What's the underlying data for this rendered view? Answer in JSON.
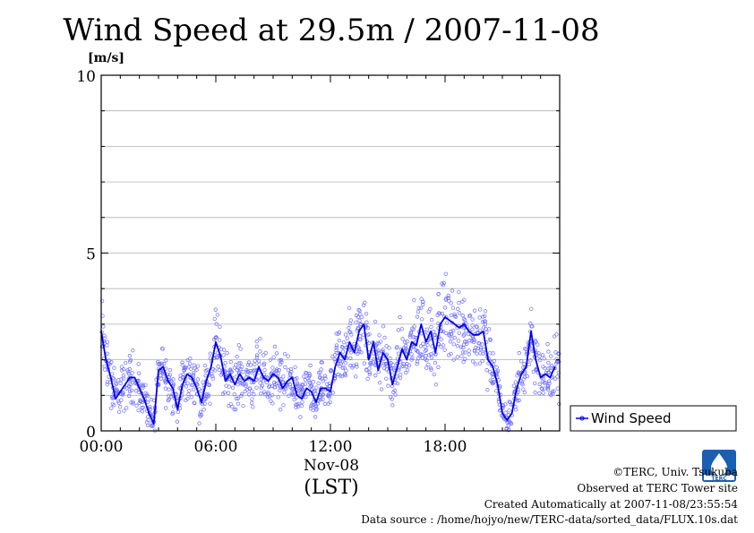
{
  "chart_data": {
    "type": "scatter",
    "title": "Wind Speed at 29.5m / 2007-11-08",
    "ylabel": "[m/s]",
    "ylim": [
      0,
      10
    ],
    "xlim": [
      0,
      24
    ],
    "x_ticks": [
      {
        "value": 0,
        "label": "00:00"
      },
      {
        "value": 6,
        "label": "06:00"
      },
      {
        "value": 12,
        "label": "12:00"
      },
      {
        "value": 18,
        "label": "18:00"
      }
    ],
    "y_ticks": [
      {
        "value": 0,
        "label": "0"
      },
      {
        "value": 5,
        "label": "5"
      },
      {
        "value": 10,
        "label": "10"
      }
    ],
    "x_date_label": "Nov-08",
    "x_axis_label": "(LST)",
    "grid": true,
    "legend_position": "right-bottom",
    "series": [
      {
        "name": "Wind Speed",
        "color": "#0000ee",
        "x": [
          0.0,
          0.25,
          0.5,
          0.75,
          1.0,
          1.25,
          1.5,
          1.75,
          2.0,
          2.25,
          2.5,
          2.75,
          3.0,
          3.25,
          3.5,
          3.75,
          4.0,
          4.25,
          4.5,
          4.75,
          5.0,
          5.25,
          5.5,
          5.75,
          6.0,
          6.25,
          6.5,
          6.75,
          7.0,
          7.25,
          7.5,
          7.75,
          8.0,
          8.25,
          8.5,
          8.75,
          9.0,
          9.25,
          9.5,
          9.75,
          10.0,
          10.25,
          10.5,
          10.75,
          11.0,
          11.25,
          11.5,
          11.75,
          12.0,
          12.25,
          12.5,
          12.75,
          13.0,
          13.25,
          13.5,
          13.75,
          14.0,
          14.25,
          14.5,
          14.75,
          15.0,
          15.25,
          15.5,
          15.75,
          16.0,
          16.25,
          16.5,
          16.75,
          17.0,
          17.25,
          17.5,
          17.75,
          18.0,
          18.25,
          18.5,
          18.75,
          19.0,
          19.25,
          19.5,
          19.75,
          20.0,
          20.25,
          20.5,
          20.75,
          21.0,
          21.25,
          21.5,
          21.75,
          22.0,
          22.25,
          22.5,
          22.75,
          23.0,
          23.25,
          23.5,
          23.75
        ],
        "values": [
          2.8,
          2.0,
          1.5,
          0.9,
          1.1,
          1.3,
          1.5,
          1.5,
          1.2,
          0.9,
          0.5,
          0.2,
          1.7,
          1.8,
          1.4,
          1.2,
          0.6,
          1.3,
          1.6,
          1.5,
          1.2,
          0.8,
          1.4,
          1.8,
          2.5,
          2.1,
          1.4,
          1.6,
          1.3,
          1.6,
          1.4,
          1.5,
          1.4,
          1.8,
          1.5,
          1.4,
          1.6,
          1.5,
          1.2,
          1.4,
          1.5,
          1.0,
          0.9,
          1.2,
          1.1,
          0.8,
          1.2,
          1.2,
          1.1,
          1.8,
          2.2,
          2.0,
          2.5,
          2.2,
          2.8,
          3.0,
          2.0,
          2.5,
          1.7,
          2.2,
          2.0,
          1.3,
          1.8,
          2.3,
          2.0,
          2.5,
          2.4,
          3.0,
          2.5,
          2.8,
          2.2,
          3.0,
          3.2,
          3.1,
          3.0,
          2.9,
          3.0,
          2.8,
          2.7,
          2.7,
          2.8,
          2.0,
          1.8,
          1.3,
          0.5,
          0.3,
          0.5,
          1.2,
          1.6,
          1.8,
          2.8,
          2.0,
          1.5,
          1.6,
          1.5,
          1.8
        ]
      }
    ]
  },
  "footer": {
    "copyright": "©TERC, Univ. Tsukuba",
    "observed": "Observed at TERC Tower site",
    "created": "Created Automatically at 2007-11-08/23:55:54",
    "source": "Data source : /home/hojyo/new/TERC-data/sorted_data/FLUX.10s.dat"
  },
  "logo": {
    "text": "TERC",
    "color": "#1a5fb4",
    "icon": "terc-logo-icon"
  }
}
